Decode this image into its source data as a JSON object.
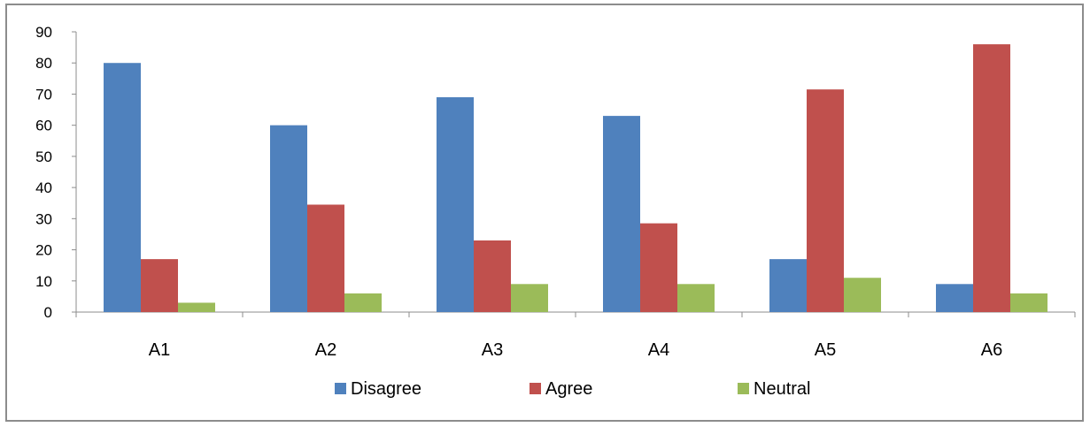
{
  "chart_data": {
    "type": "bar",
    "title": "",
    "xlabel": "",
    "ylabel": "",
    "categories": [
      "A1",
      "A2",
      "A3",
      "A4",
      "A5",
      "A6"
    ],
    "series": [
      {
        "name": "Disagree",
        "color": "#4F81BD",
        "values": [
          80,
          60,
          69,
          63,
          17,
          9
        ]
      },
      {
        "name": "Agree",
        "color": "#C0504D",
        "values": [
          17,
          34.5,
          23,
          28.5,
          71.5,
          86
        ]
      },
      {
        "name": "Neutral",
        "color": "#9BBB59",
        "values": [
          3,
          6,
          9,
          9,
          11,
          6
        ]
      }
    ],
    "ylim": [
      0,
      90
    ],
    "yticks": [
      "0",
      "10",
      "20",
      "30",
      "40",
      "50",
      "60",
      "70",
      "80",
      "90"
    ],
    "grid": false,
    "legend_position": "bottom"
  }
}
